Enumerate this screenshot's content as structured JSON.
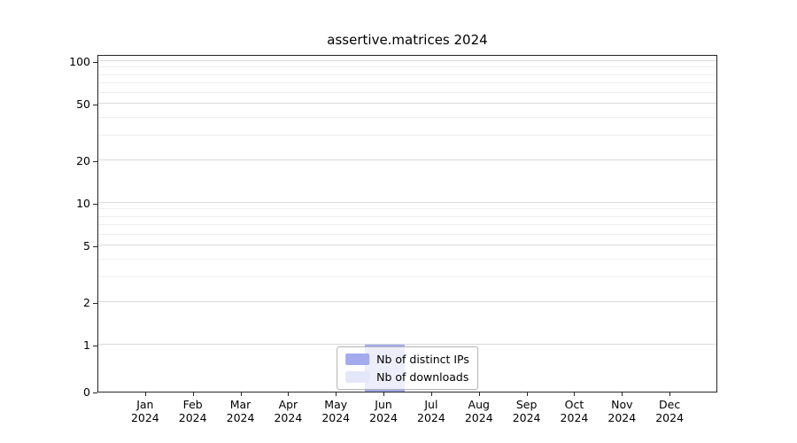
{
  "chart_data": {
    "type": "bar",
    "title": "assertive.matrices 2024",
    "categories": [
      {
        "month": "Jan",
        "year": "2024"
      },
      {
        "month": "Feb",
        "year": "2024"
      },
      {
        "month": "Mar",
        "year": "2024"
      },
      {
        "month": "Apr",
        "year": "2024"
      },
      {
        "month": "May",
        "year": "2024"
      },
      {
        "month": "Jun",
        "year": "2024"
      },
      {
        "month": "Jul",
        "year": "2024"
      },
      {
        "month": "Aug",
        "year": "2024"
      },
      {
        "month": "Sep",
        "year": "2024"
      },
      {
        "month": "Oct",
        "year": "2024"
      },
      {
        "month": "Nov",
        "year": "2024"
      },
      {
        "month": "Dec",
        "year": "2024"
      }
    ],
    "series": [
      {
        "name": "Nb of distinct IPs",
        "color": "#a3aaed",
        "values": [
          0,
          0,
          0,
          0,
          0,
          1,
          0,
          0,
          0,
          0,
          0,
          0
        ]
      },
      {
        "name": "Nb of downloads",
        "color": "#e4e6fa",
        "values": [
          0,
          0,
          0,
          0,
          0,
          1,
          0,
          0,
          0,
          0,
          0,
          0
        ]
      }
    ],
    "xlabel": "",
    "ylabel": "",
    "yscale": "symlog",
    "yticks": [
      0,
      1,
      2,
      5,
      10,
      20,
      50,
      100
    ],
    "y_minor_ticks": [
      3,
      4,
      6,
      7,
      8,
      9,
      30,
      40,
      60,
      70,
      80,
      90
    ],
    "ylim": [
      0,
      112
    ],
    "grid": true,
    "legend_position": "lower center"
  }
}
